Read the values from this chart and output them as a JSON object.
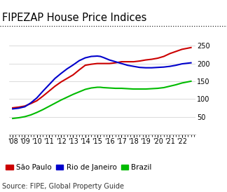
{
  "title": "FIPEZAP House Price Indices",
  "source": "Source: FIPE, Global Property Guide",
  "years": [
    2008,
    2008.5,
    2009,
    2009.5,
    2010,
    2010.5,
    2011,
    2011.5,
    2012,
    2012.5,
    2013,
    2013.5,
    2014,
    2014.5,
    2015,
    2015.25,
    2015.5,
    2016,
    2016.5,
    2017,
    2017.5,
    2018,
    2018.5,
    2019,
    2019.5,
    2020,
    2020.5,
    2021,
    2021.5,
    2022,
    2022.75
  ],
  "sao_paulo": [
    75,
    77,
    80,
    87,
    95,
    108,
    122,
    136,
    148,
    158,
    168,
    182,
    195,
    198,
    200,
    200,
    200,
    200,
    202,
    205,
    205,
    205,
    207,
    210,
    212,
    215,
    220,
    228,
    234,
    240,
    245
  ],
  "rio_de_janeiro": [
    72,
    74,
    78,
    89,
    103,
    122,
    140,
    158,
    172,
    185,
    196,
    208,
    216,
    220,
    221,
    220,
    217,
    210,
    205,
    200,
    195,
    192,
    189,
    188,
    188,
    189,
    190,
    192,
    195,
    199,
    202
  ],
  "brazil": [
    45,
    47,
    50,
    55,
    62,
    70,
    79,
    88,
    97,
    105,
    113,
    120,
    127,
    131,
    133,
    133,
    132,
    131,
    130,
    130,
    129,
    128,
    128,
    128,
    129,
    130,
    132,
    136,
    140,
    145,
    150
  ],
  "colors": {
    "sao_paulo": "#cc0000",
    "rio_de_janeiro": "#0000cc",
    "brazil": "#00bb00"
  },
  "ylim": [
    0,
    260
  ],
  "yticks": [
    50,
    100,
    150,
    200,
    250
  ],
  "xlim": [
    2007.7,
    2023.1
  ],
  "xtick_years": [
    2008,
    2009,
    2010,
    2011,
    2012,
    2013,
    2014,
    2015,
    2016,
    2017,
    2018,
    2019,
    2020,
    2021,
    2022
  ],
  "xtick_labels": [
    "'08",
    "'09",
    "'10",
    "'11",
    "'12",
    "'13",
    "'14",
    "'15",
    "'16",
    "'17",
    "'18",
    "'19",
    "'20",
    "'21",
    "'22"
  ],
  "bg_color": "#ffffff",
  "grid_color": "#cccccc",
  "title_fontsize": 10.5,
  "legend_fontsize": 7.5,
  "source_fontsize": 7,
  "tick_fontsize": 7,
  "linewidth": 1.5
}
